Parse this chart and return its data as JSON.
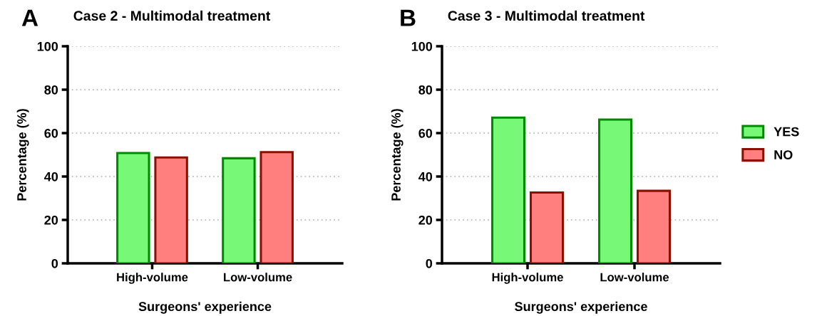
{
  "chart_data": [
    {
      "type": "bar",
      "title": "Case 2 - Multimodal treatment",
      "xlabel": "Surgeons' experience",
      "ylabel": "Percentage (%)",
      "annotations": [
        "A"
      ],
      "categories": [
        "High-volume",
        "Low-volume"
      ],
      "series": [
        {
          "color": "#77f977",
          "values": [
            50.8,
            48.4
          ]
        },
        {
          "color": "#ff7f7f",
          "values": [
            48.8,
            51.2
          ]
        }
      ],
      "ylim": [
        0,
        100
      ],
      "yticks": [
        0,
        20,
        40,
        60,
        80,
        100
      ],
      "grid": "y",
      "legend": false
    },
    {
      "type": "bar",
      "title": "Case 3 - Multimodal treatment",
      "xlabel": "Surgeons' experience",
      "ylabel": "Percentage (%)",
      "annotations": [
        "B"
      ],
      "categories": [
        "High-volume",
        "Low-volume"
      ],
      "series": [
        {
          "name": "YES",
          "color": "#77f977",
          "values": [
            67.1,
            66.2
          ]
        },
        {
          "name": "NO",
          "color": "#ff7f7f",
          "values": [
            32.6,
            33.4
          ]
        }
      ],
      "ylim": [
        0,
        100
      ],
      "yticks": [
        0,
        20,
        40,
        60,
        80,
        100
      ],
      "grid": "y",
      "legend": "right"
    }
  ]
}
